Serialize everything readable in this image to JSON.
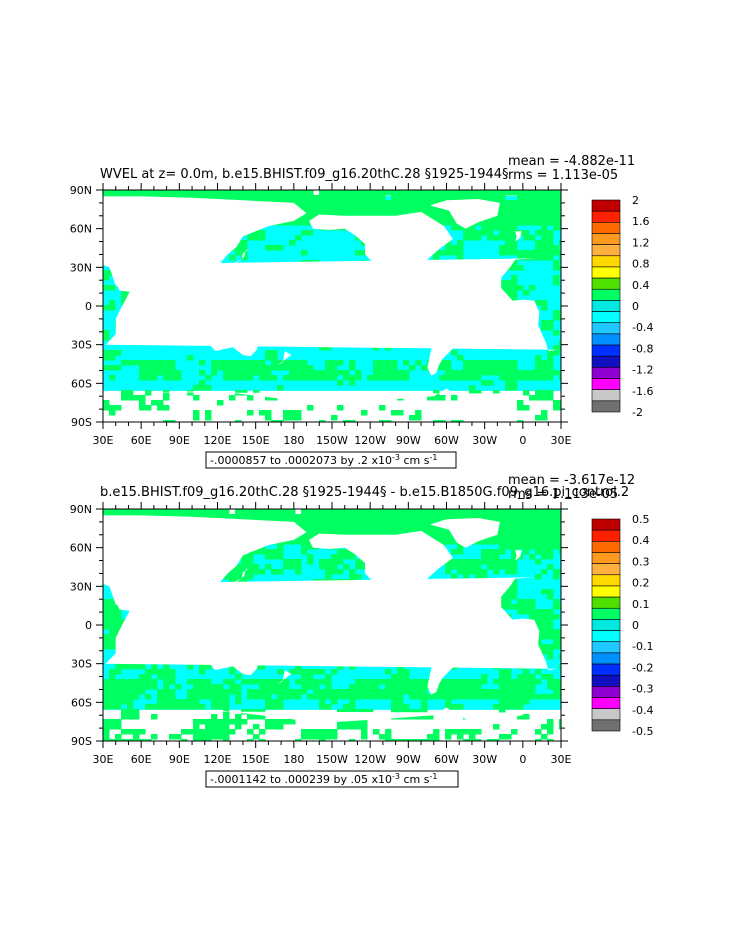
{
  "chart_data": [
    {
      "type": "heatmap",
      "title": "WVEL at z=    0.0m, b.e15.BHIST.f09_g16.20thC.28 §1925-1944§",
      "stats": {
        "mean": "mean = -4.882e-11",
        "rms": "rms = 1.113e-05"
      },
      "x_ticks": [
        "30E",
        "60E",
        "90E",
        "120E",
        "150E",
        "180",
        "150W",
        "120W",
        "90W",
        "60W",
        "30W",
        "0",
        "30E"
      ],
      "y_ticks": [
        "90N",
        "60N",
        "30N",
        "0",
        "30S",
        "60S",
        "90S"
      ],
      "range_text_prefix": "-.0000857 to .0002073 by .2 x10",
      "range_exp": "-3",
      "range_units": " cm s",
      "range_units_exp": "-1",
      "colorbar": {
        "labels": [
          "2",
          "1.6",
          "1.2",
          "0.8",
          "0.4",
          "0",
          "-0.4",
          "-0.8",
          "-1.2",
          "-1.6",
          "-2"
        ],
        "colors": [
          "#c00000",
          "#ff2000",
          "#ff6a00",
          "#ff9a20",
          "#ffb040",
          "#ffd800",
          "#ffff00",
          "#50e000",
          "#00ff60",
          "#00e8e0",
          "#00ffff",
          "#20c8ff",
          "#0090ff",
          "#0030ff",
          "#1010c0",
          "#9000d0",
          "#ff00ff",
          "#c8c8c8",
          "#707070"
        ]
      }
    },
    {
      "type": "heatmap",
      "title": "b.e15.BHIST.f09_g16.20thC.28 §1925-1944§ - b.e15.B1850G.f09_g16.pi_control.2",
      "stats": {
        "mean": "mean = -3.617e-12",
        "rms": "rms = 1.113e-05"
      },
      "x_ticks": [
        "30E",
        "60E",
        "90E",
        "120E",
        "150E",
        "180",
        "150W",
        "120W",
        "90W",
        "60W",
        "30W",
        "0",
        "30E"
      ],
      "y_ticks": [
        "90N",
        "60N",
        "30N",
        "0",
        "30S",
        "60S",
        "90S"
      ],
      "range_text_prefix": "-.0001142 to .000239 by .05 x10",
      "range_exp": "-3",
      "range_units": " cm s",
      "range_units_exp": "-1",
      "colorbar": {
        "labels": [
          "0.5",
          "0.4",
          "0.3",
          "0.2",
          "0.1",
          "0",
          "-0.1",
          "-0.2",
          "-0.3",
          "-0.4",
          "-0.5"
        ],
        "colors": [
          "#c00000",
          "#ff2000",
          "#ff6a00",
          "#ff9a20",
          "#ffb040",
          "#ffd800",
          "#ffff00",
          "#50e000",
          "#00ff60",
          "#00e8e0",
          "#00ffff",
          "#20c8ff",
          "#0090ff",
          "#0030ff",
          "#1010c0",
          "#9000d0",
          "#ff00ff",
          "#c8c8c8",
          "#707070"
        ]
      }
    }
  ],
  "field_colors": {
    "positive": "#00ff60",
    "negative": "#00ffff",
    "land": "#ffffff"
  }
}
